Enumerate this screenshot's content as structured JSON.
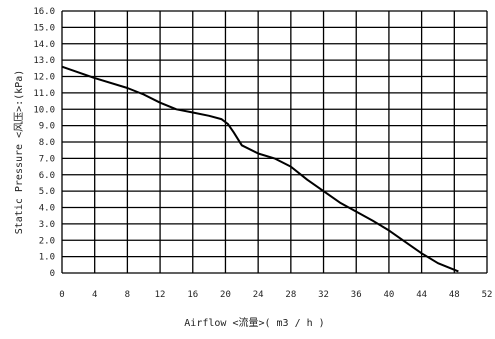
{
  "chart_data": {
    "type": "line",
    "xlabel": "Airflow <流量>( m3 / h )",
    "ylabel": "Static Pressure <风压>:(kPa)",
    "xlim": [
      0,
      52
    ],
    "ylim": [
      0,
      16
    ],
    "grid": true,
    "legend": "none",
    "x_ticks": [
      "0",
      "4",
      "8",
      "12",
      "16",
      "20",
      "24",
      "28",
      "32",
      "36",
      "40",
      "44",
      "48",
      "52"
    ],
    "y_ticks": [
      "0",
      "1.0",
      "2.0",
      "3.0",
      "4.0",
      "5.0",
      "6.0",
      "7.0",
      "8.0",
      "9.0",
      "10.0",
      "11.0",
      "12.0",
      "13.0",
      "14.0",
      "15.0",
      "16.0"
    ],
    "series": [
      {
        "name": "",
        "color": "#000000",
        "x": [
          0,
          4,
          8,
          10,
          12,
          14,
          16,
          18,
          19.5,
          20.3,
          21,
          22,
          24,
          26,
          28,
          30,
          34,
          38,
          40,
          42,
          44,
          46,
          48.5
        ],
        "y": [
          12.6,
          11.9,
          11.3,
          10.9,
          10.4,
          10.0,
          9.8,
          9.6,
          9.4,
          9.1,
          8.6,
          7.8,
          7.3,
          7.0,
          6.5,
          5.7,
          4.3,
          3.2,
          2.6,
          1.9,
          1.2,
          0.6,
          0.1
        ]
      }
    ]
  }
}
